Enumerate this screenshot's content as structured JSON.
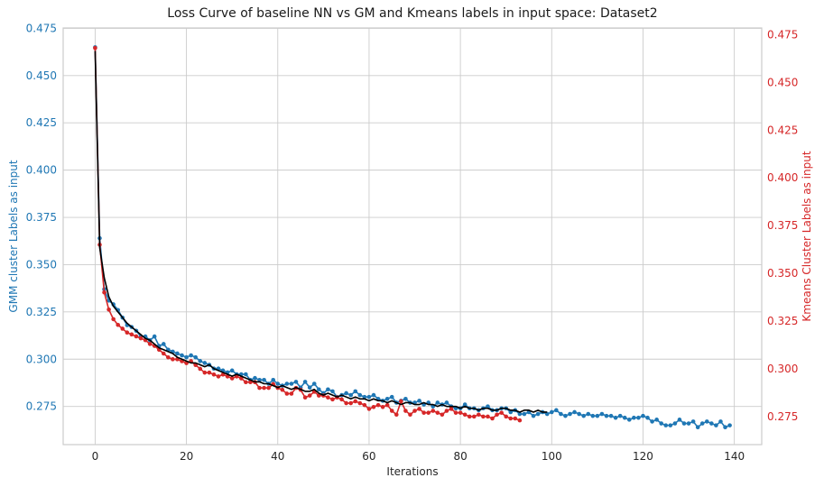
{
  "chart_data": {
    "type": "line",
    "title": "Loss Curve of baseline NN vs GM and Kmeans labels in input space: Dataset2",
    "xlabel": "Iterations",
    "ylabel_left": "GMM cluster Labels as input",
    "ylabel_right": "Kmeans Cluster Labels as input",
    "xlim": [
      -7,
      146
    ],
    "ylim_left": [
      0.2548,
      0.4752
    ],
    "ylim_right": [
      0.2603,
      0.4785
    ],
    "x_ticks": [
      0,
      20,
      40,
      60,
      80,
      100,
      120,
      140
    ],
    "y_ticks_left": [
      0.275,
      0.3,
      0.325,
      0.35,
      0.375,
      0.4,
      0.425,
      0.45,
      0.475
    ],
    "y_ticks_right": [
      0.275,
      0.3,
      0.325,
      0.35,
      0.375,
      0.4,
      0.425,
      0.45,
      0.475
    ],
    "x_tick_labels": [
      "0",
      "20",
      "40",
      "60",
      "80",
      "100",
      "120",
      "140"
    ],
    "y_tick_labels_left": [
      "0.275",
      "0.300",
      "0.325",
      "0.350",
      "0.375",
      "0.400",
      "0.425",
      "0.450",
      "0.475"
    ],
    "y_tick_labels_right": [
      "0.275",
      "0.300",
      "0.325",
      "0.350",
      "0.375",
      "0.400",
      "0.425",
      "0.450",
      "0.475"
    ],
    "grid": true,
    "colors": {
      "gmm": "#1f77b4",
      "kmeans": "#d62728",
      "baseline": "#000000",
      "grid": "#cccccc",
      "frame": "#cccccc"
    },
    "series": [
      {
        "axis": "left",
        "marker": "dot",
        "values": [
          0.465,
          0.364,
          0.337,
          0.331,
          0.329,
          0.326,
          0.322,
          0.318,
          0.317,
          0.315,
          0.312,
          0.312,
          0.31,
          0.312,
          0.307,
          0.308,
          0.305,
          0.304,
          0.303,
          0.302,
          0.301,
          0.302,
          0.301,
          0.299,
          0.298,
          0.297,
          0.295,
          0.295,
          0.294,
          0.293,
          0.294,
          0.292,
          0.292,
          0.292,
          0.289,
          0.29,
          0.289,
          0.289,
          0.287,
          0.289,
          0.287,
          0.286,
          0.287,
          0.287,
          0.288,
          0.285,
          0.288,
          0.285,
          0.287,
          0.284,
          0.282,
          0.284,
          0.283,
          0.28,
          0.281,
          0.282,
          0.281,
          0.283,
          0.281,
          0.28,
          0.28,
          0.281,
          0.279,
          0.278,
          0.279,
          0.28,
          0.277,
          0.278,
          0.279,
          0.277,
          0.277,
          0.278,
          0.276,
          0.277,
          0.275,
          0.277,
          0.276,
          0.277,
          0.275,
          0.274,
          0.274,
          0.276,
          0.274,
          0.274,
          0.273,
          0.274,
          0.275,
          0.273,
          0.273,
          0.274,
          0.274,
          0.272,
          0.273,
          0.271,
          0.271,
          0.272,
          0.27,
          0.271,
          0.272,
          0.271,
          0.272,
          0.273,
          0.271,
          0.27,
          0.271,
          0.272,
          0.271,
          0.27,
          0.271,
          0.27,
          0.27,
          0.271,
          0.27,
          0.27,
          0.269,
          0.27,
          0.269,
          0.268,
          0.269,
          0.269,
          0.27,
          0.269,
          0.267,
          0.268,
          0.266,
          0.265,
          0.265,
          0.266,
          0.268,
          0.266,
          0.266,
          0.267,
          0.264,
          0.266,
          0.267,
          0.266,
          0.265,
          0.267,
          0.264,
          0.265
        ]
      },
      {
        "axis": "right",
        "marker": "dot",
        "values": [
          0.468,
          0.365,
          0.34,
          0.331,
          0.326,
          0.323,
          0.321,
          0.319,
          0.318,
          0.317,
          0.316,
          0.315,
          0.313,
          0.312,
          0.31,
          0.308,
          0.306,
          0.305,
          0.305,
          0.304,
          0.303,
          0.304,
          0.302,
          0.3,
          0.298,
          0.298,
          0.297,
          0.296,
          0.297,
          0.296,
          0.295,
          0.296,
          0.295,
          0.293,
          0.293,
          0.293,
          0.29,
          0.29,
          0.29,
          0.292,
          0.29,
          0.289,
          0.287,
          0.287,
          0.29,
          0.289,
          0.285,
          0.286,
          0.288,
          0.286,
          0.286,
          0.285,
          0.284,
          0.285,
          0.284,
          0.282,
          0.282,
          0.283,
          0.282,
          0.281,
          0.279,
          0.28,
          0.281,
          0.28,
          0.281,
          0.278,
          0.276,
          0.283,
          0.278,
          0.276,
          0.278,
          0.279,
          0.277,
          0.277,
          0.278,
          0.277,
          0.276,
          0.278,
          0.279,
          0.277,
          0.277,
          0.276,
          0.275,
          0.275,
          0.276,
          0.275,
          0.275,
          0.274,
          0.276,
          0.277,
          0.275,
          0.274,
          0.274,
          0.273
        ]
      },
      {
        "axis": "left",
        "marker": "none",
        "values": [
          0.463,
          0.359,
          0.343,
          0.333,
          0.328,
          0.325,
          0.322,
          0.319,
          0.317,
          0.315,
          0.313,
          0.311,
          0.31,
          0.308,
          0.306,
          0.305,
          0.304,
          0.303,
          0.301,
          0.3,
          0.299,
          0.298,
          0.298,
          0.297,
          0.296,
          0.297,
          0.295,
          0.294,
          0.293,
          0.292,
          0.291,
          0.292,
          0.291,
          0.29,
          0.289,
          0.288,
          0.288,
          0.287,
          0.287,
          0.286,
          0.285,
          0.286,
          0.285,
          0.284,
          0.285,
          0.284,
          0.283,
          0.283,
          0.284,
          0.282,
          0.281,
          0.282,
          0.281,
          0.28,
          0.281,
          0.28,
          0.279,
          0.28,
          0.279,
          0.279,
          0.278,
          0.279,
          0.278,
          0.278,
          0.277,
          0.278,
          0.277,
          0.276,
          0.277,
          0.277,
          0.276,
          0.276,
          0.277,
          0.276,
          0.276,
          0.275,
          0.276,
          0.275,
          0.275,
          0.275,
          0.274,
          0.275,
          0.274,
          0.274,
          0.273,
          0.274,
          0.274,
          0.273,
          0.273,
          0.274,
          0.274,
          0.273,
          0.273,
          0.272,
          0.273,
          0.273,
          0.272,
          0.273,
          0.272,
          0.272
        ]
      }
    ]
  }
}
